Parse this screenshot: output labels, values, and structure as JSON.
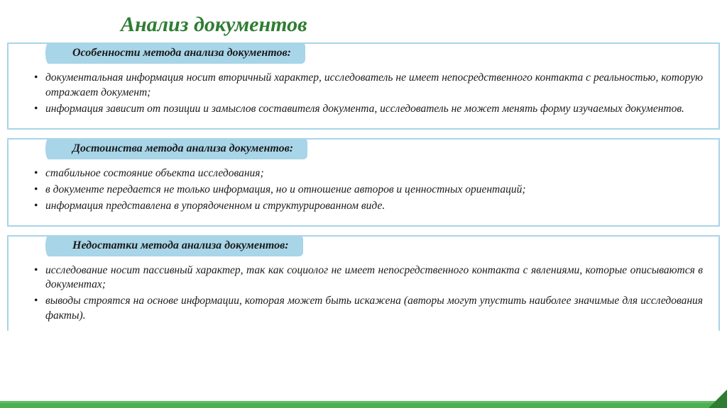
{
  "title": "Анализ документов",
  "colors": {
    "title": "#2e7d32",
    "tab_bg": "#a8d5e8",
    "border": "#a8d5e8",
    "text": "#1a1a1a",
    "footer": "#4caf50",
    "footer_top": "#66bb6a",
    "corner": "#2e7d32"
  },
  "typography": {
    "title_fontsize": 30,
    "tab_fontsize": 16,
    "body_fontsize": 15.5,
    "family": "Georgia / serif",
    "italic": true
  },
  "sections": [
    {
      "header": "Особенности метода анализа документов:",
      "items": [
        "документальная информация носит вторичный характер, исследователь не имеет непосредственного контакта с реальностью, которую отражает документ;",
        "информация зависит от позиции и замыслов составителя документа, исследователь не может менять форму изучаемых документов."
      ]
    },
    {
      "header": "Достоинства метода анализа документов:",
      "items": [
        "стабильное состояние объекта исследования;",
        "в документе передается не только информация, но и отношение авторов и ценностных ориентаций;",
        "информация представлена в упорядоченном и структурированном виде."
      ]
    },
    {
      "header": "Недостатки метода анализа документов:",
      "items": [
        "исследование носит пассивный характер, так как социолог не имеет непосредственного контакта с явлениями, которые описываются в документах;",
        "выводы строятся на основе информации, которая может быть искажена (авторы могут упустить наиболее значимые для исследования факты)."
      ]
    }
  ]
}
